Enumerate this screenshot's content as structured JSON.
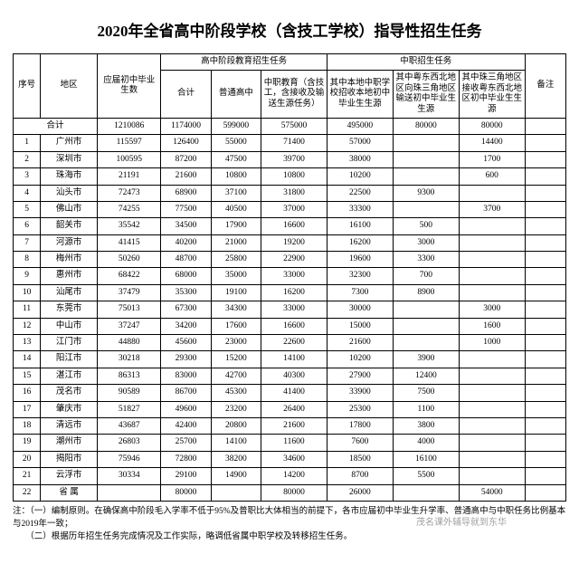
{
  "title": "2020年全省高中阶段学校（含技工学校）指导性招生任务",
  "header": {
    "idx": "序号",
    "region": "地区",
    "grads": "应届初中毕业生数",
    "gaozhong_group": "高中阶段教育招生任务",
    "zhongzhi_group": "中职招生任务",
    "total": "合计",
    "putong": "普通高中",
    "zhongzhi_edu": "中职教育（含技工，含接收及输送生源任务）",
    "local_src": "其中本地中职学校招收本地初中毕业生生源",
    "out_src": "其中粤东西北地区向珠三角地区输送初中毕业生生源",
    "in_src": "其中珠三角地区接收粤东西北地区初中毕业生生源",
    "remark": "备注",
    "sum_label": "合计"
  },
  "totals": {
    "grads": "1210086",
    "total": "1174000",
    "putong": "599000",
    "zz_edu": "575000",
    "local": "495000",
    "out": "80000",
    "in": "80000"
  },
  "rows": [
    {
      "idx": "1",
      "region": "广州市",
      "grads": "115597",
      "total": "126400",
      "putong": "55000",
      "zz_edu": "71400",
      "local": "57000",
      "out": "",
      "in": "14400",
      "remark": ""
    },
    {
      "idx": "2",
      "region": "深圳市",
      "grads": "100595",
      "total": "87200",
      "putong": "47500",
      "zz_edu": "39700",
      "local": "38000",
      "out": "",
      "in": "1700",
      "remark": ""
    },
    {
      "idx": "3",
      "region": "珠海市",
      "grads": "21191",
      "total": "21600",
      "putong": "10800",
      "zz_edu": "10800",
      "local": "10200",
      "out": "",
      "in": "600",
      "remark": ""
    },
    {
      "idx": "4",
      "region": "汕头市",
      "grads": "72473",
      "total": "68900",
      "putong": "37100",
      "zz_edu": "31800",
      "local": "22500",
      "out": "9300",
      "in": "",
      "remark": ""
    },
    {
      "idx": "5",
      "region": "佛山市",
      "grads": "74255",
      "total": "77500",
      "putong": "40500",
      "zz_edu": "37000",
      "local": "33300",
      "out": "",
      "in": "3700",
      "remark": ""
    },
    {
      "idx": "6",
      "region": "韶关市",
      "grads": "35542",
      "total": "34500",
      "putong": "17900",
      "zz_edu": "16600",
      "local": "16100",
      "out": "500",
      "in": "",
      "remark": ""
    },
    {
      "idx": "7",
      "region": "河源市",
      "grads": "41415",
      "total": "40200",
      "putong": "21000",
      "zz_edu": "19200",
      "local": "16200",
      "out": "3000",
      "in": "",
      "remark": ""
    },
    {
      "idx": "8",
      "region": "梅州市",
      "grads": "50260",
      "total": "48700",
      "putong": "25800",
      "zz_edu": "22900",
      "local": "19600",
      "out": "3300",
      "in": "",
      "remark": ""
    },
    {
      "idx": "9",
      "region": "惠州市",
      "grads": "68422",
      "total": "68000",
      "putong": "35000",
      "zz_edu": "33000",
      "local": "32300",
      "out": "700",
      "in": "",
      "remark": ""
    },
    {
      "idx": "10",
      "region": "汕尾市",
      "grads": "37479",
      "total": "35300",
      "putong": "19100",
      "zz_edu": "16200",
      "local": "7300",
      "out": "8900",
      "in": "",
      "remark": ""
    },
    {
      "idx": "11",
      "region": "东莞市",
      "grads": "75013",
      "total": "67300",
      "putong": "34300",
      "zz_edu": "33000",
      "local": "30000",
      "out": "",
      "in": "3000",
      "remark": ""
    },
    {
      "idx": "12",
      "region": "中山市",
      "grads": "37247",
      "total": "34200",
      "putong": "17600",
      "zz_edu": "16600",
      "local": "15000",
      "out": "",
      "in": "1600",
      "remark": ""
    },
    {
      "idx": "13",
      "region": "江门市",
      "grads": "44880",
      "total": "45600",
      "putong": "23000",
      "zz_edu": "22600",
      "local": "21600",
      "out": "",
      "in": "1000",
      "remark": ""
    },
    {
      "idx": "14",
      "region": "阳江市",
      "grads": "30218",
      "total": "29300",
      "putong": "15200",
      "zz_edu": "14100",
      "local": "10200",
      "out": "3900",
      "in": "",
      "remark": ""
    },
    {
      "idx": "15",
      "region": "湛江市",
      "grads": "86313",
      "total": "83000",
      "putong": "42700",
      "zz_edu": "40300",
      "local": "27900",
      "out": "12400",
      "in": "",
      "remark": ""
    },
    {
      "idx": "16",
      "region": "茂名市",
      "grads": "90589",
      "total": "86700",
      "putong": "45300",
      "zz_edu": "41400",
      "local": "33900",
      "out": "7500",
      "in": "",
      "remark": ""
    },
    {
      "idx": "17",
      "region": "肇庆市",
      "grads": "51827",
      "total": "49600",
      "putong": "23200",
      "zz_edu": "26400",
      "local": "25300",
      "out": "1100",
      "in": "",
      "remark": ""
    },
    {
      "idx": "18",
      "region": "清远市",
      "grads": "43687",
      "total": "42400",
      "putong": "20800",
      "zz_edu": "21600",
      "local": "17800",
      "out": "3800",
      "in": "",
      "remark": ""
    },
    {
      "idx": "19",
      "region": "潮州市",
      "grads": "26803",
      "total": "25700",
      "putong": "14100",
      "zz_edu": "11600",
      "local": "7600",
      "out": "4000",
      "in": "",
      "remark": ""
    },
    {
      "idx": "20",
      "region": "揭阳市",
      "grads": "75946",
      "total": "72800",
      "putong": "38200",
      "zz_edu": "34600",
      "local": "18500",
      "out": "16100",
      "in": "",
      "remark": ""
    },
    {
      "idx": "21",
      "region": "云浮市",
      "grads": "30334",
      "total": "29100",
      "putong": "14900",
      "zz_edu": "14200",
      "local": "8700",
      "out": "5500",
      "in": "",
      "remark": ""
    },
    {
      "idx": "22",
      "region": "省 属",
      "grads": "",
      "total": "80000",
      "putong": "",
      "zz_edu": "80000",
      "local": "26000",
      "out": "",
      "in": "54000",
      "remark": ""
    }
  ],
  "notes": [
    "注：（一）编制原则。在确保高中阶段毛入学率不低于95%及普职比大体相当的前提下，各市应届初中毕业生升学率、普通高中与中职任务比例基本与2019年一致；",
    "　　（二）根据历年招生任务完成情况及工作实际，略调低省属中职学校及转移招生任务。"
  ],
  "watermark": "茂名课外辅导就到东华"
}
